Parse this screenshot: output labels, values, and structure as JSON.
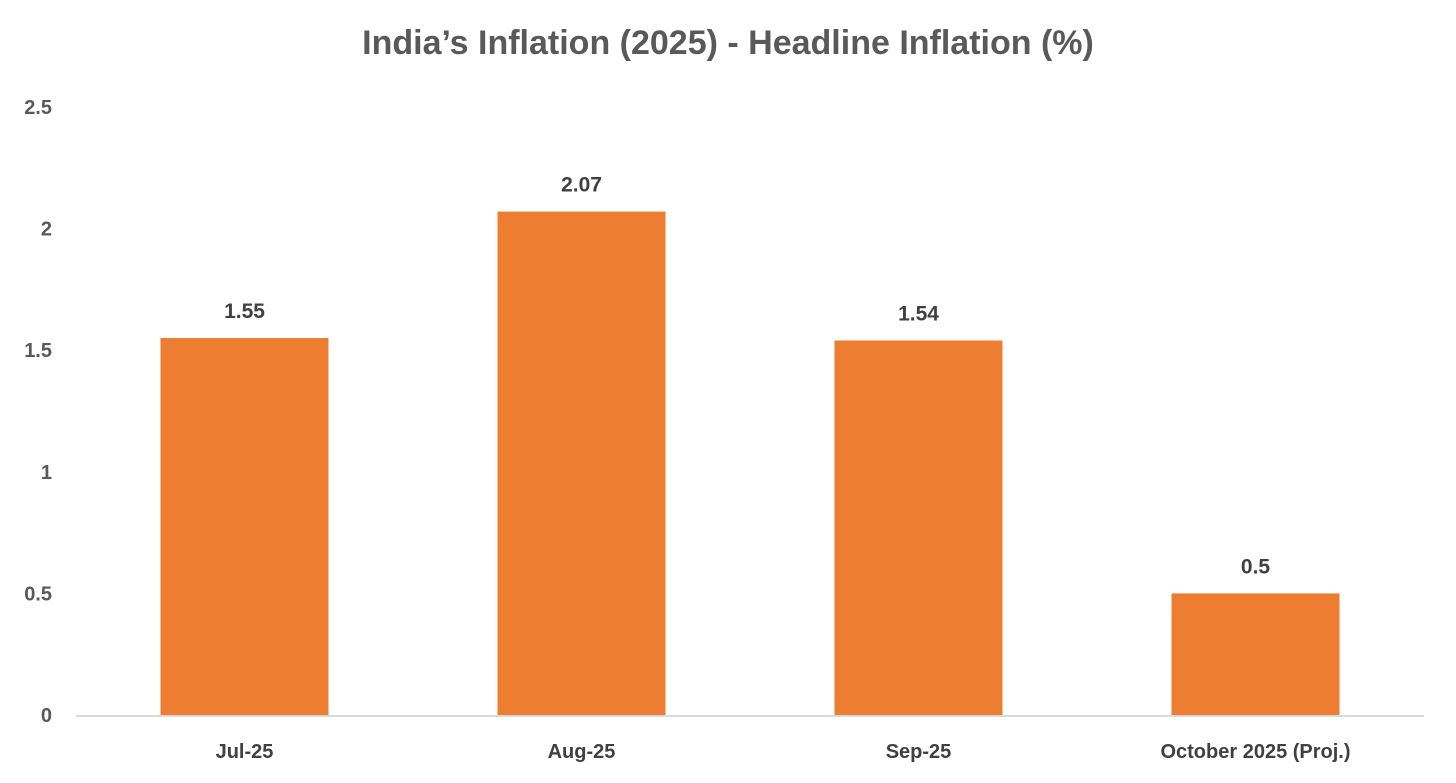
{
  "chart_data": {
    "type": "bar",
    "title": "India’s Inflation (2025) - Headline Inflation (%)",
    "xlabel": "",
    "ylabel": "",
    "categories": [
      "Jul-25",
      "Aug-25",
      "Sep-25",
      "October 2025 (Proj.)"
    ],
    "values": [
      1.55,
      2.07,
      1.54,
      0.5
    ],
    "data_labels": [
      "1.55",
      "2.07",
      "1.54",
      "0.5"
    ],
    "ylim": [
      0,
      2.5
    ],
    "yticks": [
      0,
      0.5,
      1,
      1.5,
      2,
      2.5
    ],
    "ytick_labels": [
      "0",
      "0.5",
      "1",
      "1.5",
      "2",
      "2.5"
    ],
    "grid": false,
    "legend": "none",
    "bar_color": "#ED7D31",
    "axis_color": "#D9D9D9"
  }
}
